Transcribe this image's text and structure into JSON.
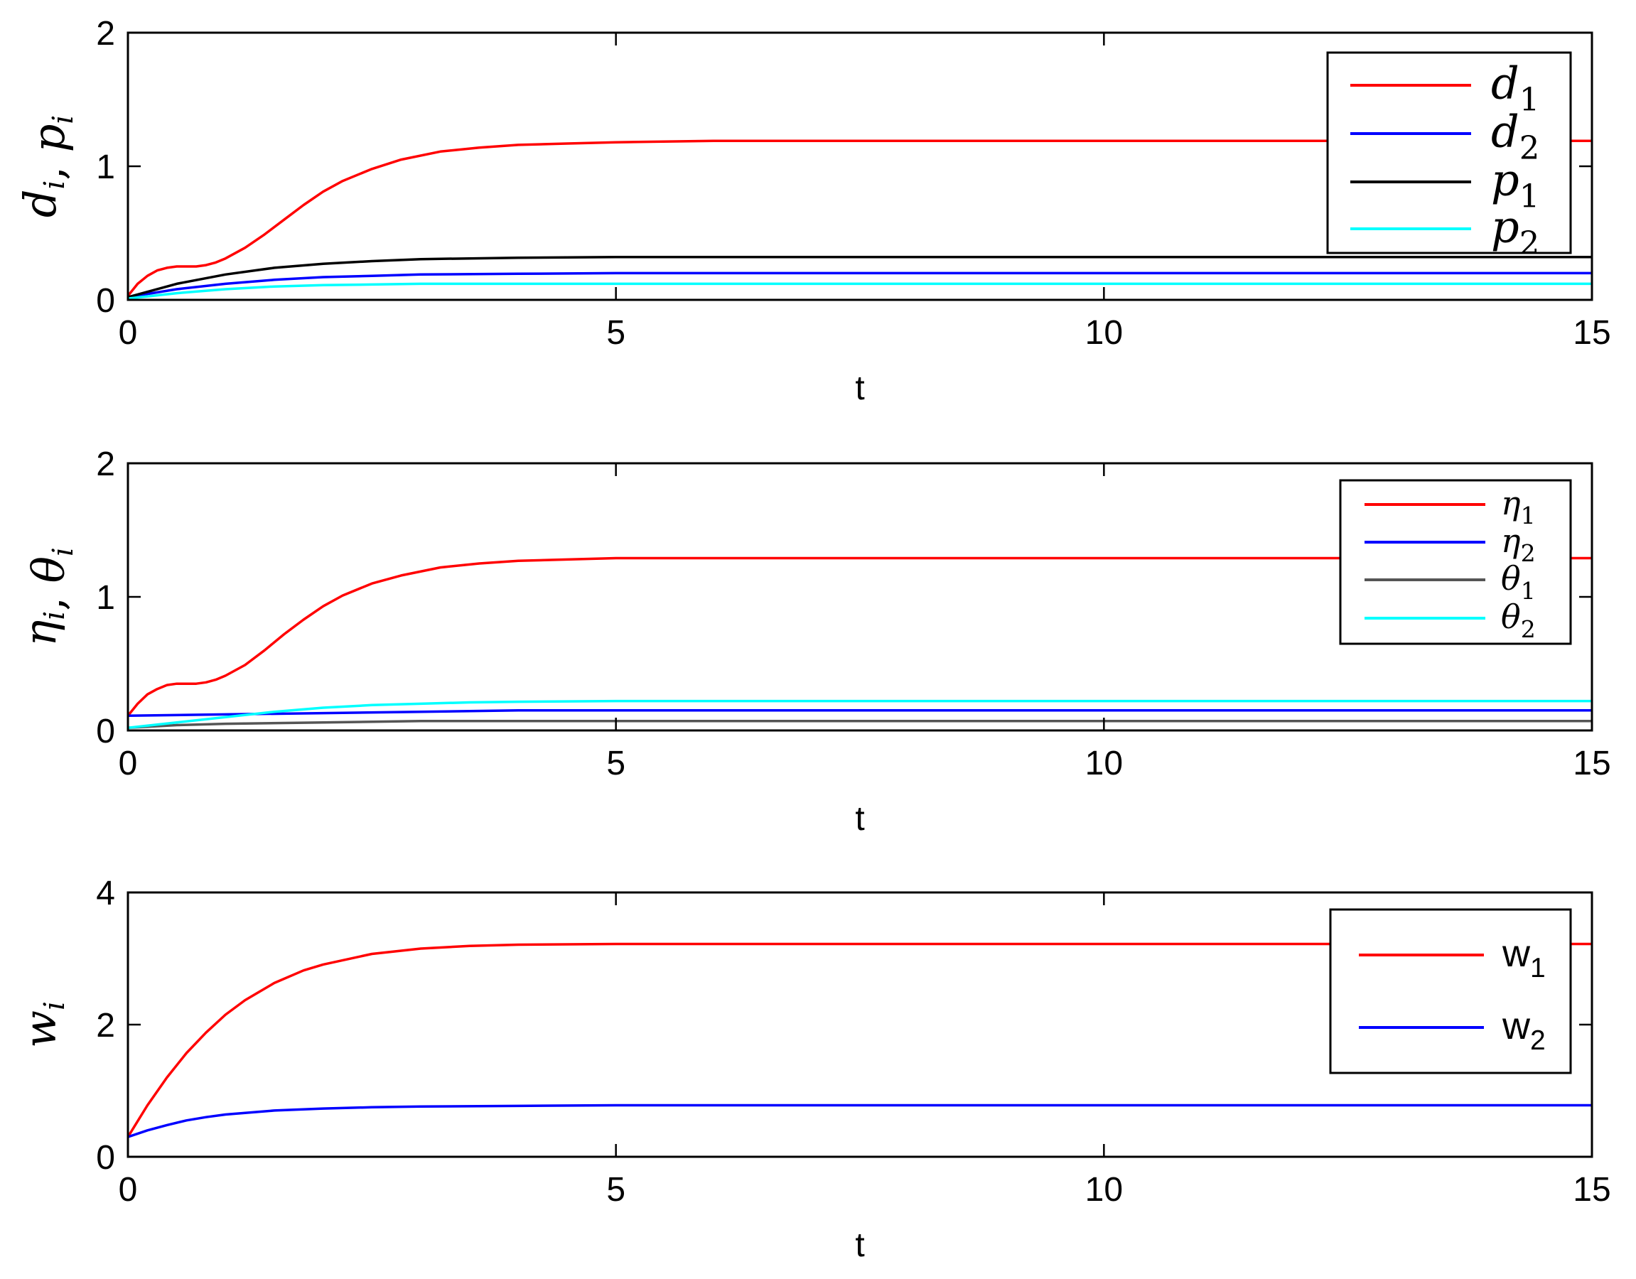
{
  "chart_data": [
    {
      "type": "line",
      "ylabel": "d_i, p_i",
      "ylabel_parts": {
        "main1": "d",
        "sub1": "i",
        "sep": ", ",
        "main2": "p",
        "sub2": "i"
      },
      "xlabel": "t",
      "xlim": [
        0,
        15
      ],
      "ylim": [
        0,
        2
      ],
      "xticks": [
        0,
        5,
        10,
        15
      ],
      "xtick_labels": [
        "0",
        "5",
        "10",
        "15"
      ],
      "yticks": [
        0,
        1,
        2
      ],
      "ytick_labels": [
        "0",
        "1",
        "2"
      ],
      "grid": false,
      "legend_position": "top-right",
      "series": [
        {
          "name": "d1",
          "label_main": "d",
          "label_sub": "1",
          "color": "#ff0000",
          "x": [
            0,
            0.1,
            0.2,
            0.3,
            0.4,
            0.5,
            0.6,
            0.7,
            0.8,
            0.9,
            1.0,
            1.2,
            1.4,
            1.6,
            1.8,
            2.0,
            2.2,
            2.5,
            2.8,
            3.2,
            3.6,
            4.0,
            4.5,
            5.0,
            6,
            8,
            10,
            12,
            15
          ],
          "y": [
            0.03,
            0.12,
            0.18,
            0.22,
            0.24,
            0.25,
            0.25,
            0.25,
            0.26,
            0.28,
            0.31,
            0.39,
            0.49,
            0.6,
            0.71,
            0.81,
            0.89,
            0.98,
            1.05,
            1.11,
            1.14,
            1.16,
            1.17,
            1.18,
            1.19,
            1.19,
            1.19,
            1.19,
            1.19
          ]
        },
        {
          "name": "d2",
          "label_main": "d",
          "label_sub": "2",
          "color": "#0000ff",
          "x": [
            0,
            0.5,
            1.0,
            1.5,
            2.0,
            2.5,
            3.0,
            4.0,
            5.0,
            8,
            12,
            15
          ],
          "y": [
            0.02,
            0.08,
            0.12,
            0.15,
            0.17,
            0.18,
            0.19,
            0.195,
            0.2,
            0.2,
            0.2,
            0.2
          ]
        },
        {
          "name": "p1",
          "label_main": "p",
          "label_sub": "1",
          "color": "#000000",
          "x": [
            0,
            0.5,
            1.0,
            1.5,
            2.0,
            2.5,
            3.0,
            3.5,
            4.0,
            5.0,
            8,
            12,
            15
          ],
          "y": [
            0.02,
            0.12,
            0.19,
            0.24,
            0.27,
            0.29,
            0.305,
            0.31,
            0.315,
            0.32,
            0.32,
            0.32,
            0.32
          ]
        },
        {
          "name": "p2",
          "label_main": "p",
          "label_sub": "2",
          "color": "#00ffff",
          "x": [
            0,
            0.5,
            1.0,
            1.5,
            2.0,
            2.5,
            3.0,
            4.0,
            5.0,
            8,
            12,
            15
          ],
          "y": [
            0.01,
            0.05,
            0.08,
            0.1,
            0.11,
            0.115,
            0.12,
            0.12,
            0.12,
            0.12,
            0.12,
            0.12
          ]
        }
      ]
    },
    {
      "type": "line",
      "ylabel": "η_i, θ_i",
      "ylabel_parts": {
        "main1": "η",
        "sub1": "i",
        "sep": ", ",
        "main2": "θ",
        "sub2": "i"
      },
      "xlabel": "t",
      "xlim": [
        0,
        15
      ],
      "ylim": [
        0,
        2
      ],
      "xticks": [
        0,
        5,
        10,
        15
      ],
      "xtick_labels": [
        "0",
        "5",
        "10",
        "15"
      ],
      "yticks": [
        0,
        1,
        2
      ],
      "ytick_labels": [
        "0",
        "1",
        "2"
      ],
      "grid": false,
      "legend_position": "top-right",
      "series": [
        {
          "name": "η1",
          "label_main": "η",
          "label_sub": "1",
          "color": "#ff0000",
          "x": [
            0,
            0.1,
            0.2,
            0.3,
            0.4,
            0.5,
            0.6,
            0.7,
            0.8,
            0.9,
            1.0,
            1.2,
            1.4,
            1.6,
            1.8,
            2.0,
            2.2,
            2.5,
            2.8,
            3.2,
            3.6,
            4.0,
            4.5,
            5.0,
            6,
            8,
            10,
            12,
            15
          ],
          "y": [
            0.11,
            0.2,
            0.27,
            0.31,
            0.34,
            0.35,
            0.35,
            0.35,
            0.36,
            0.38,
            0.41,
            0.49,
            0.6,
            0.72,
            0.83,
            0.93,
            1.01,
            1.1,
            1.16,
            1.22,
            1.25,
            1.27,
            1.28,
            1.29,
            1.29,
            1.29,
            1.29,
            1.29,
            1.29
          ]
        },
        {
          "name": "η2",
          "label_main": "η",
          "label_sub": "2",
          "color": "#0000ff",
          "x": [
            0,
            1.0,
            2.0,
            3.0,
            4.0,
            5.0,
            8,
            12,
            15
          ],
          "y": [
            0.11,
            0.12,
            0.13,
            0.14,
            0.15,
            0.15,
            0.15,
            0.15,
            0.15
          ]
        },
        {
          "name": "θ1",
          "label_main": "θ",
          "label_sub": "1",
          "color": "#555555",
          "x": [
            0,
            0.5,
            1.0,
            2.0,
            3.0,
            4.0,
            5.0,
            8,
            12,
            15
          ],
          "y": [
            0.02,
            0.04,
            0.05,
            0.06,
            0.07,
            0.07,
            0.07,
            0.07,
            0.07,
            0.07
          ]
        },
        {
          "name": "θ2",
          "label_main": "θ",
          "label_sub": "2",
          "color": "#00ffff",
          "x": [
            0,
            0.5,
            1.0,
            1.5,
            2.0,
            2.5,
            3.0,
            3.5,
            4.0,
            5.0,
            8,
            12,
            15
          ],
          "y": [
            0.02,
            0.06,
            0.1,
            0.14,
            0.17,
            0.19,
            0.2,
            0.21,
            0.215,
            0.22,
            0.22,
            0.22,
            0.22
          ]
        }
      ]
    },
    {
      "type": "line",
      "ylabel": "w_i",
      "ylabel_parts": {
        "main1": "w",
        "sub1": "i",
        "sep": "",
        "main2": "",
        "sub2": ""
      },
      "xlabel": "t",
      "xlim": [
        0,
        15
      ],
      "ylim": [
        0,
        4
      ],
      "xticks": [
        0,
        5,
        10,
        15
      ],
      "xtick_labels": [
        "0",
        "5",
        "10",
        "15"
      ],
      "yticks": [
        0,
        2,
        4
      ],
      "ytick_labels": [
        "0",
        "2",
        "4"
      ],
      "grid": false,
      "legend_position": "top-right",
      "series": [
        {
          "name": "w1",
          "label_main": "w",
          "label_sub": "1",
          "color": "#ff0000",
          "x": [
            0,
            0.2,
            0.4,
            0.6,
            0.8,
            1.0,
            1.2,
            1.5,
            1.8,
            2.0,
            2.5,
            3.0,
            3.5,
            4.0,
            5.0,
            6,
            8,
            10,
            12,
            15
          ],
          "y": [
            0.3,
            0.78,
            1.2,
            1.57,
            1.88,
            2.15,
            2.37,
            2.63,
            2.82,
            2.91,
            3.07,
            3.15,
            3.19,
            3.21,
            3.22,
            3.22,
            3.22,
            3.22,
            3.22,
            3.22
          ]
        },
        {
          "name": "w2",
          "label_main": "w",
          "label_sub": "2",
          "color": "#0000ff",
          "x": [
            0,
            0.2,
            0.4,
            0.6,
            0.8,
            1.0,
            1.5,
            2.0,
            2.5,
            3.0,
            4.0,
            5.0,
            8,
            12,
            15
          ],
          "y": [
            0.3,
            0.4,
            0.48,
            0.55,
            0.6,
            0.64,
            0.7,
            0.73,
            0.75,
            0.76,
            0.77,
            0.78,
            0.78,
            0.78,
            0.78
          ]
        }
      ]
    }
  ]
}
